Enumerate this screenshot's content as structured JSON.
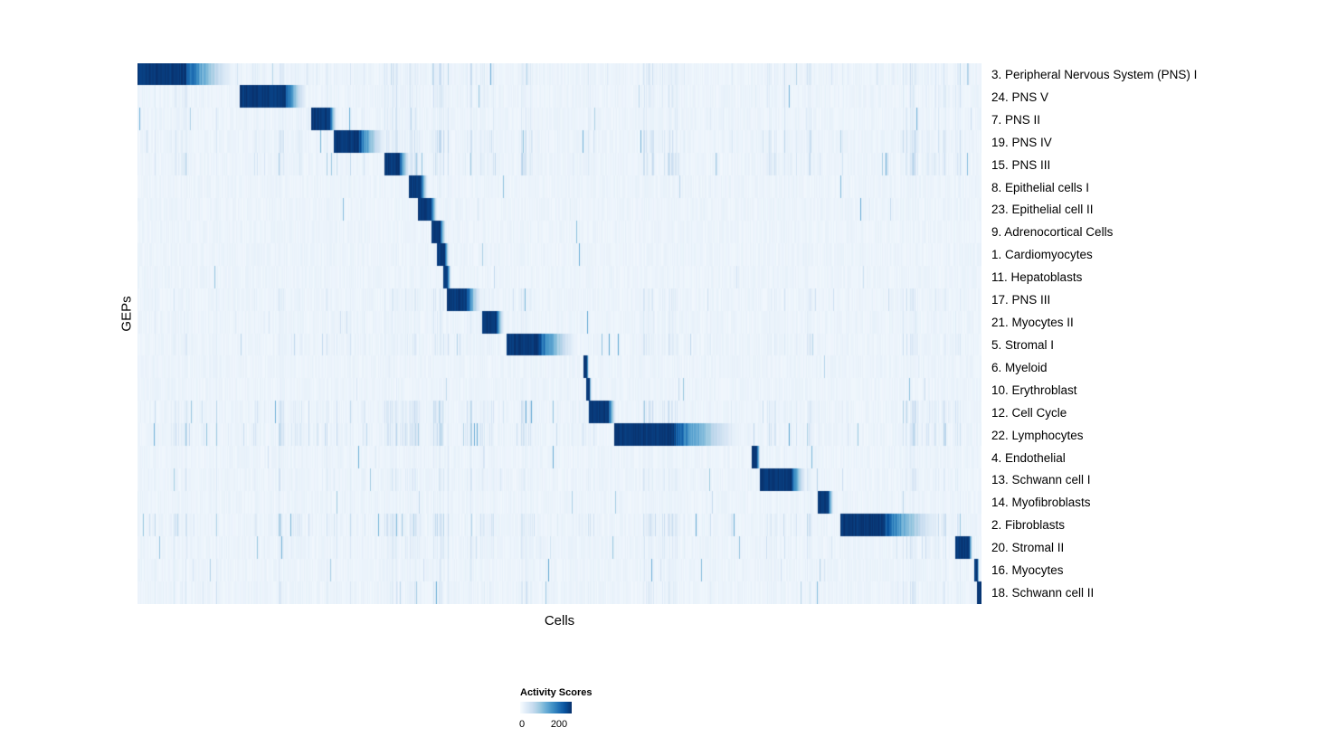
{
  "chart_data": {
    "type": "heatmap",
    "title": "",
    "xlabel": "Cells",
    "ylabel": "GEPs",
    "colorbar": {
      "title": "Activity Scores",
      "min": 0,
      "max": 200
    },
    "colormap": [
      "#f7fbff",
      "#deebf7",
      "#c6dbef",
      "#9ecae1",
      "#6baed6",
      "#4292c6",
      "#2171b5",
      "#08519c",
      "#08306b"
    ],
    "x_axis_note": "individual cells ordered along x; block values are fractions of the cell axis where each GEP is highly active (peak activity ~200)",
    "rows": [
      {
        "label": "3. Peripheral Nervous System (PNS) I",
        "block": [
          0.0,
          0.057
        ],
        "fade_to": 0.125,
        "noise": 0.6
      },
      {
        "label": "24. PNS V",
        "block": [
          0.121,
          0.175
        ],
        "fade_to": 0.205,
        "noise": 0.5
      },
      {
        "label": "7. PNS II",
        "block": [
          0.205,
          0.228
        ],
        "fade_to": 0.237,
        "noise": 0.5
      },
      {
        "label": "19. PNS IV",
        "block": [
          0.232,
          0.262
        ],
        "fade_to": 0.3,
        "noise": 0.7
      },
      {
        "label": "15. PNS III",
        "block": [
          0.292,
          0.31
        ],
        "fade_to": 0.325,
        "noise": 0.8
      },
      {
        "label": "8. Epithelial cells I",
        "block": [
          0.321,
          0.336
        ],
        "fade_to": 0.345,
        "noise": 0.25
      },
      {
        "label": "23. Epithelial cell II",
        "block": [
          0.332,
          0.348
        ],
        "fade_to": 0.356,
        "noise": 0.2
      },
      {
        "label": "9. Adrenocortical Cells",
        "block": [
          0.348,
          0.359
        ],
        "fade_to": 0.366,
        "noise": 0.15
      },
      {
        "label": "1. Cardiomyocytes",
        "block": [
          0.354,
          0.364
        ],
        "fade_to": 0.37,
        "noise": 0.2
      },
      {
        "label": "11. Hepatoblasts",
        "block": [
          0.362,
          0.367
        ],
        "fade_to": 0.372,
        "noise": 0.15
      },
      {
        "label": "17. PNS III",
        "block": [
          0.366,
          0.39
        ],
        "fade_to": 0.41,
        "noise": 0.5
      },
      {
        "label": "21. Myocytes II",
        "block": [
          0.408,
          0.425
        ],
        "fade_to": 0.436,
        "noise": 0.4
      },
      {
        "label": "5. Stromal I",
        "block": [
          0.437,
          0.475
        ],
        "fade_to": 0.528,
        "noise": 0.5
      },
      {
        "label": "6. Myeloid",
        "block": [
          0.528,
          0.532
        ],
        "fade_to": 0.535,
        "noise": 0.2
      },
      {
        "label": "10. Erythroblast",
        "block": [
          0.531,
          0.535
        ],
        "fade_to": 0.538,
        "noise": 0.25
      },
      {
        "label": "12. Cell Cycle",
        "block": [
          0.534,
          0.558
        ],
        "fade_to": 0.568,
        "noise": 0.8
      },
      {
        "label": "22. Lymphocytes",
        "block": [
          0.564,
          0.635
        ],
        "fade_to": 0.728,
        "noise": 0.9
      },
      {
        "label": "4. Endothelial",
        "block": [
          0.727,
          0.734
        ],
        "fade_to": 0.738,
        "noise": 0.3
      },
      {
        "label": "13. Schwann cell I",
        "block": [
          0.737,
          0.775
        ],
        "fade_to": 0.795,
        "noise": 0.5
      },
      {
        "label": "14. Myofibroblasts",
        "block": [
          0.805,
          0.818
        ],
        "fade_to": 0.826,
        "noise": 0.3
      },
      {
        "label": "2. Fibroblasts",
        "block": [
          0.832,
          0.885
        ],
        "fade_to": 0.962,
        "noise": 0.8
      },
      {
        "label": "20. Stromal II",
        "block": [
          0.968,
          0.985
        ],
        "fade_to": 0.99,
        "noise": 0.5
      },
      {
        "label": "16. Myocytes",
        "block": [
          0.991,
          0.995
        ],
        "fade_to": 0.997,
        "noise": 0.35
      },
      {
        "label": "18. Schwann cell II",
        "block": [
          0.994,
          1.0
        ],
        "fade_to": 1.0,
        "noise": 0.5
      }
    ]
  }
}
